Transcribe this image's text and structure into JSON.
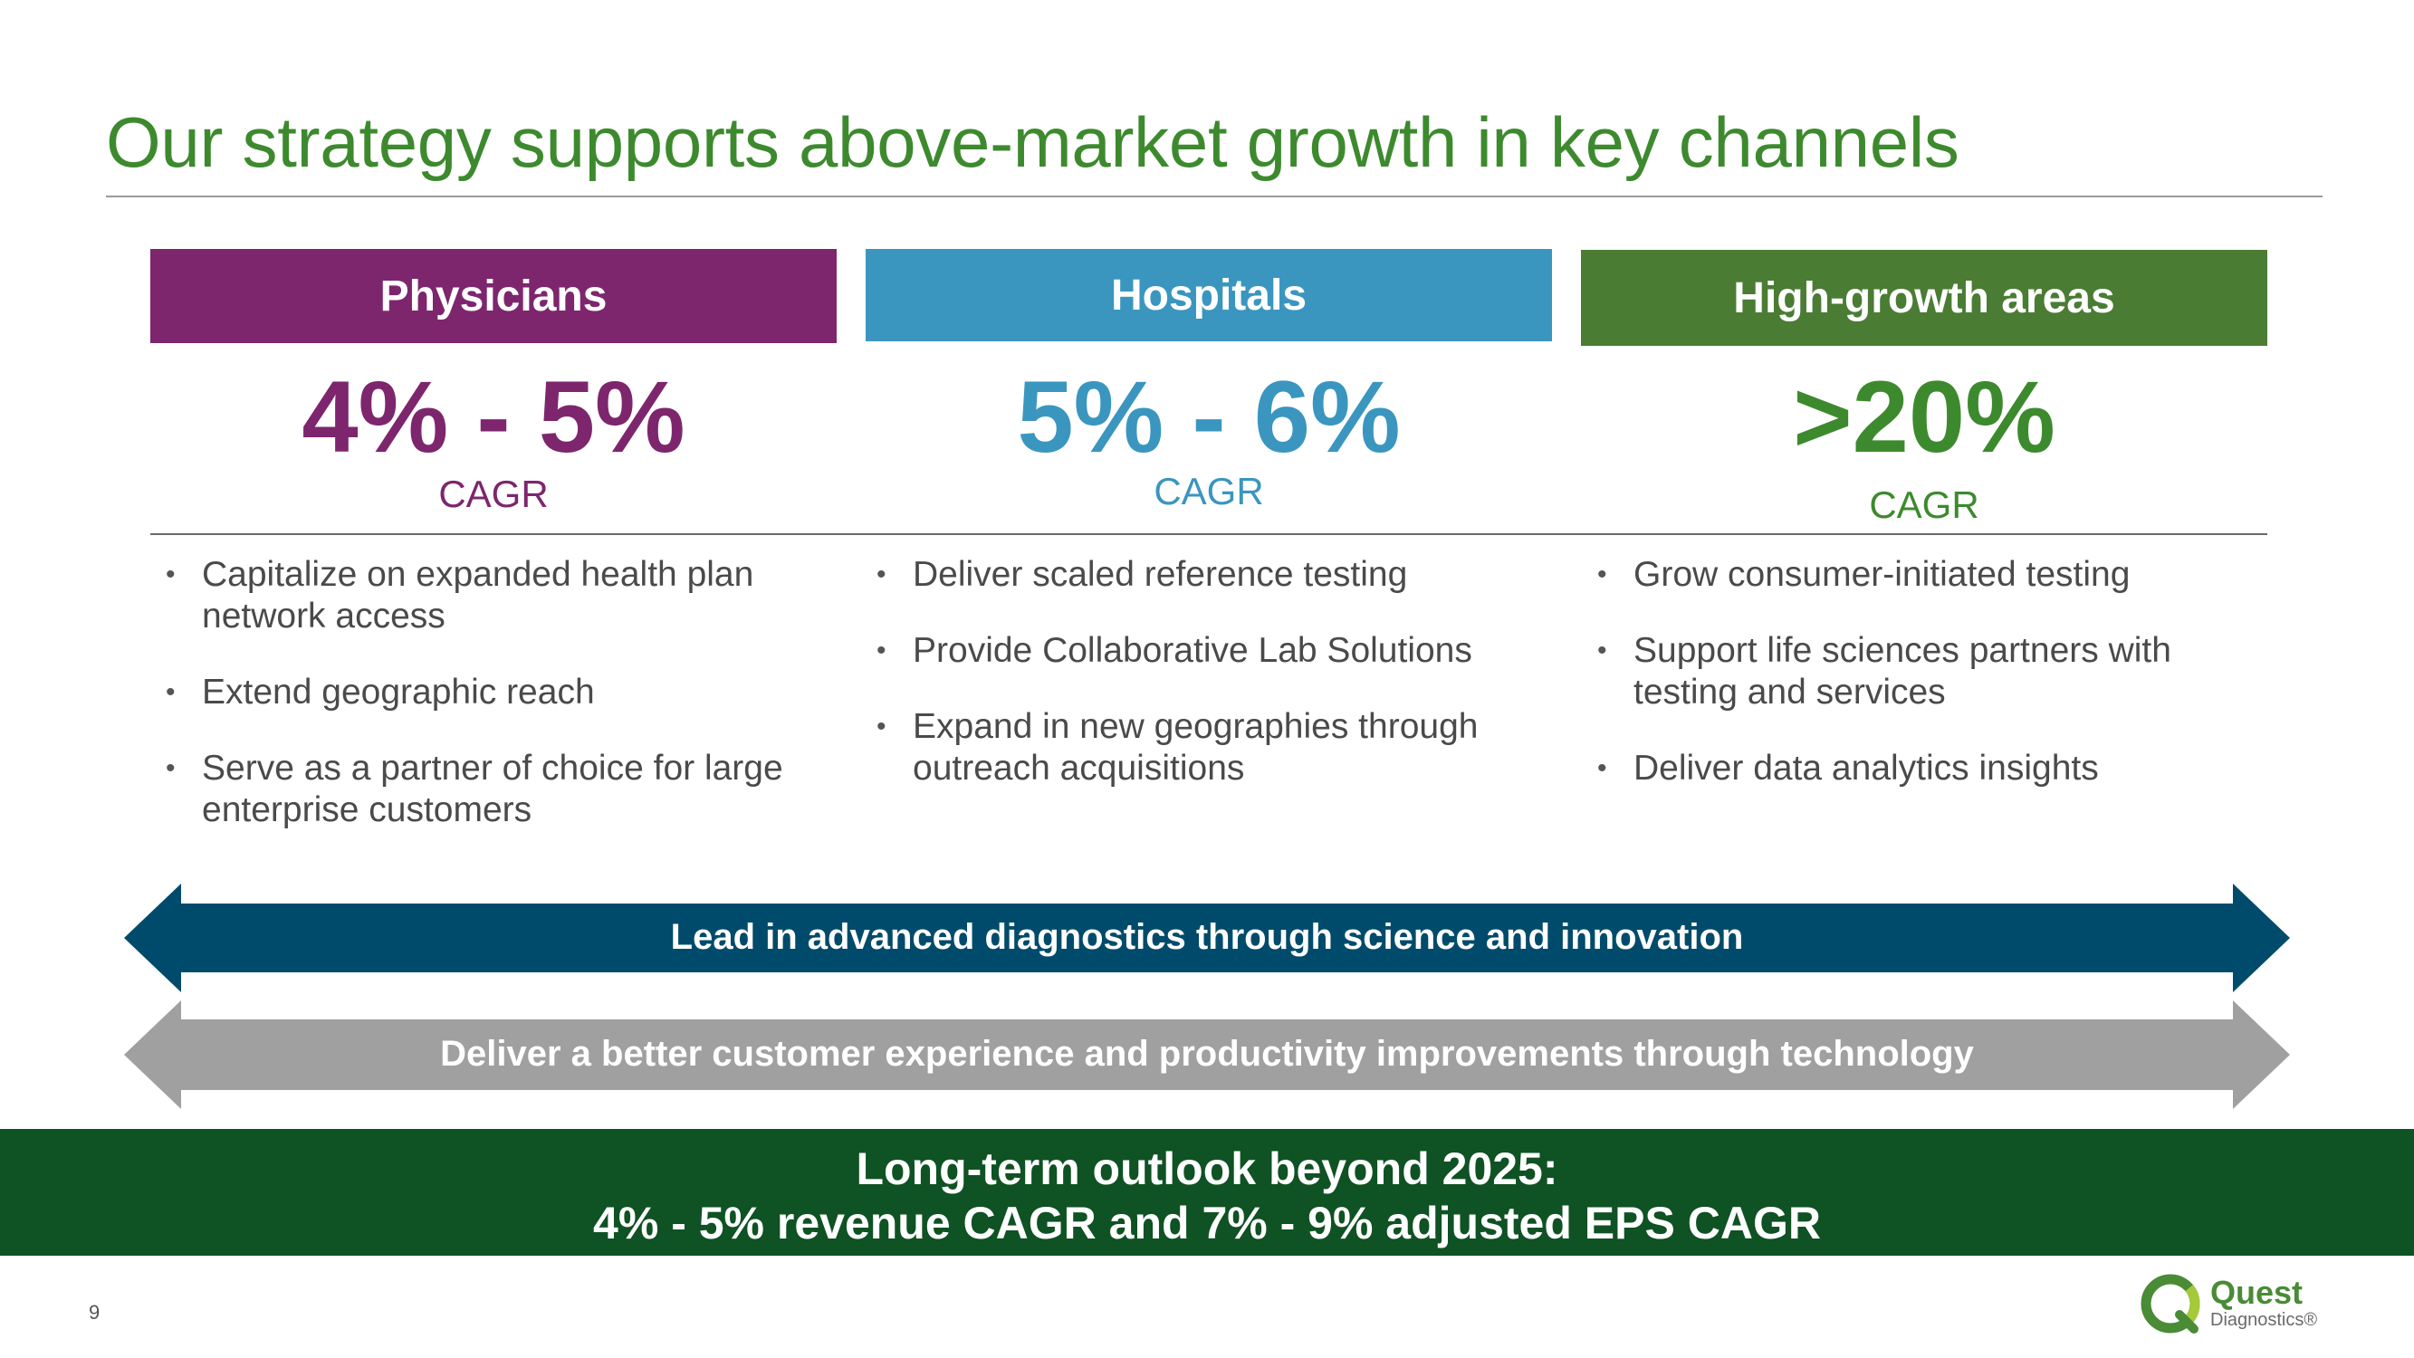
{
  "title": "Our strategy supports above-market growth in key channels",
  "colors": {
    "title_green": "#3d8a2e",
    "physicians": "#7d266e",
    "hospitals": "#3a96bf",
    "high_growth": "#4a7c34",
    "arrow_blue": "#004b6b",
    "arrow_gray": "#a0a0a0",
    "outlook_green": "#0f5223"
  },
  "columns": [
    {
      "header": "Physicians",
      "value": "4% - 5%",
      "metric": "CAGR",
      "bullets": [
        "Capitalize on expanded health plan network access",
        "Extend geographic reach",
        "Serve as a partner of choice for large enterprise customers"
      ]
    },
    {
      "header": "Hospitals",
      "value": "5% - 6%",
      "metric": "CAGR",
      "bullets": [
        "Deliver scaled reference testing",
        "Provide Collaborative Lab Solutions",
        "Expand in new geographies through outreach acquisitions"
      ]
    },
    {
      "header": "High-growth areas",
      "value": ">20%",
      "metric": "CAGR",
      "bullets": [
        "Grow consumer-initiated testing",
        "Support life sciences partners with testing and services",
        "Deliver data analytics insights"
      ]
    }
  ],
  "arrows": [
    {
      "label": "Lead in advanced diagnostics through science and innovation"
    },
    {
      "label": "Deliver a better customer experience and productivity improvements through technology"
    }
  ],
  "outlook": {
    "line1": "Long-term outlook beyond 2025:",
    "line2": "4% - 5% revenue CAGR and 7% - 9% adjusted EPS CAGR"
  },
  "footer": {
    "page_number": "9",
    "logo_name": "Quest",
    "logo_sub": "Diagnostics®",
    "logo_icon": "quest-logo-icon"
  }
}
